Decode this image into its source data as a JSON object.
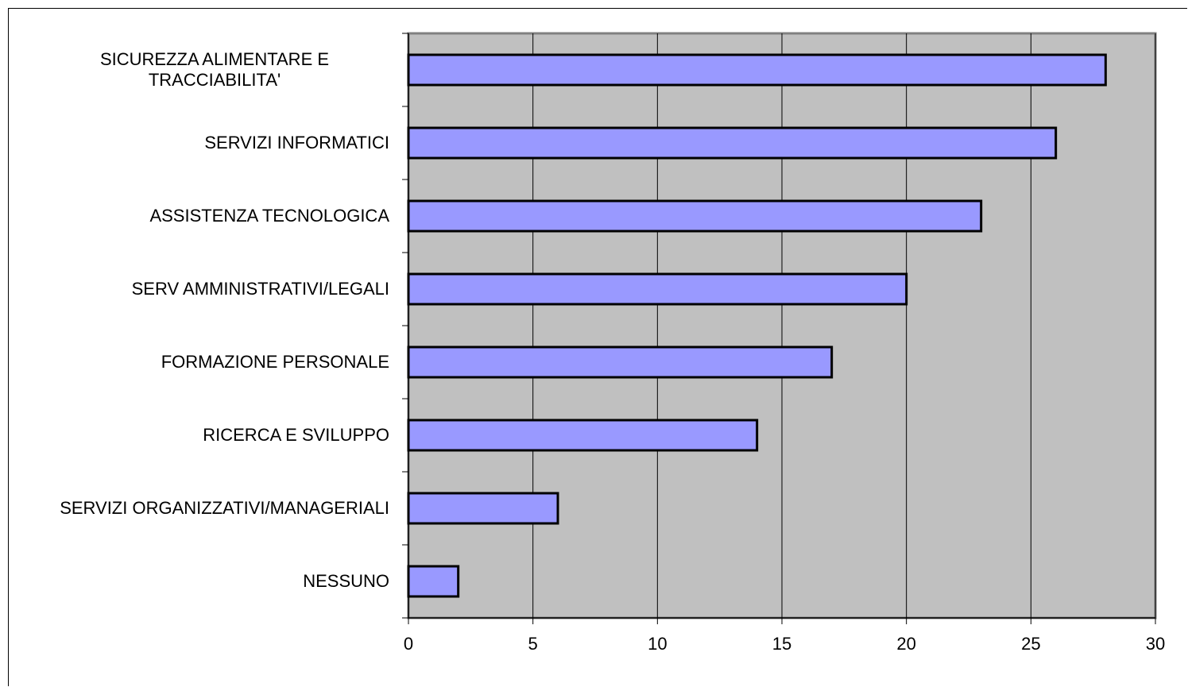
{
  "chart_data": {
    "type": "bar",
    "orientation": "horizontal",
    "categories": [
      "SICUREZZA ALIMENTARE E TRACCIABILITA'",
      "SERVIZI INFORMATICI",
      "ASSISTENZA TECNOLOGICA",
      "SERV AMMINISTRATIVI/LEGALI",
      "FORMAZIONE PERSONALE",
      "RICERCA E SVILUPPO",
      "SERVIZI ORGANIZZATIVI/MANAGERIALI",
      "NESSUNO"
    ],
    "values": [
      28,
      26,
      23,
      20,
      17,
      14,
      6,
      2
    ],
    "color": "#9999ff",
    "xlim": [
      0,
      30
    ],
    "xticks": [
      0,
      5,
      10,
      15,
      20,
      25,
      30
    ],
    "grid": true
  }
}
